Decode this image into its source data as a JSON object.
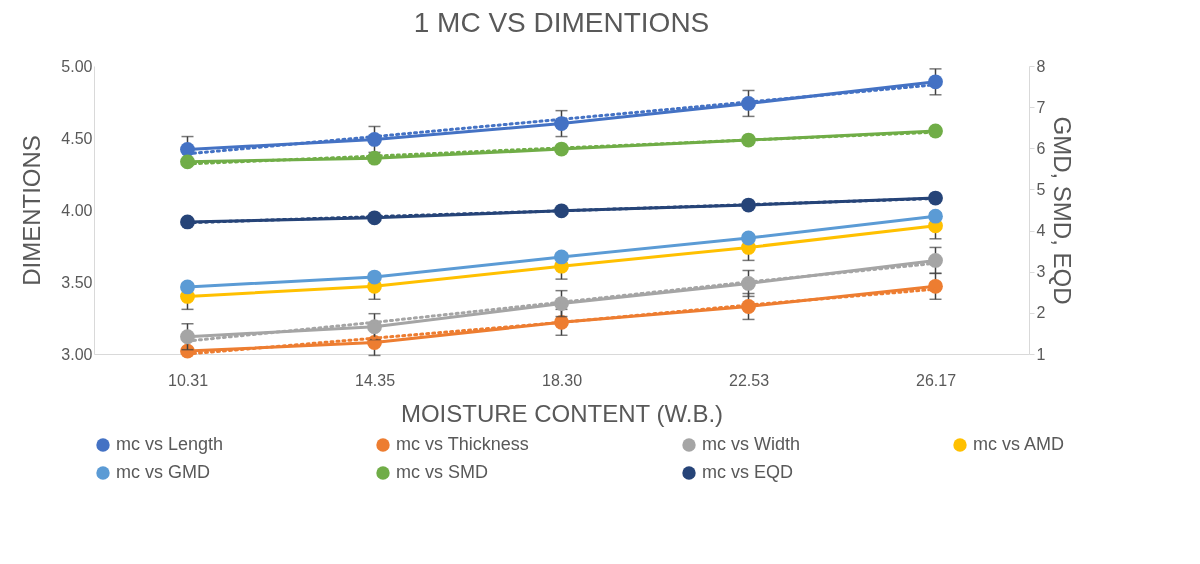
{
  "chart_data": {
    "type": "line",
    "title": "1 MC VS DIMENTIONS",
    "xlabel": "MOISTURE CONTENT (W.B.)",
    "ylabel": "DIMENTIONS",
    "y2label": "GMD, SMD, EQD",
    "categories": [
      "10.31",
      "14.35",
      "18.30",
      "22.53",
      "26.17"
    ],
    "ylim": [
      3,
      5
    ],
    "yticks": [
      {
        "value": 3,
        "label": "3.00"
      },
      {
        "value": 3.5,
        "label": "3.50"
      },
      {
        "value": 4,
        "label": "4.00"
      },
      {
        "value": 4.5,
        "label": "4.50"
      },
      {
        "value": 5,
        "label": "5.00"
      }
    ],
    "y2lim": [
      1,
      8
    ],
    "y2ticks": [
      1,
      2,
      3,
      4,
      5,
      6,
      7,
      8
    ],
    "grid": false,
    "legend": "bottom",
    "marker": "circle",
    "line_style": "solid",
    "series": [
      {
        "name": "mc vs Length",
        "color": "#4472c4",
        "values": [
          4.42,
          4.49,
          4.6,
          4.74,
          4.89
        ],
        "errors": [
          0.09,
          0.09,
          0.09,
          0.09,
          0.09
        ]
      },
      {
        "name": "mc vs Thickness",
        "color": "#ed7d31",
        "values": [
          3.02,
          3.08,
          3.22,
          3.33,
          3.47
        ],
        "errors": [
          null,
          0.09,
          0.09,
          0.09,
          0.09
        ]
      },
      {
        "name": "mc vs Width",
        "color": "#a5a5a5",
        "values": [
          3.12,
          3.19,
          3.35,
          3.49,
          3.65
        ],
        "errors": [
          0.09,
          0.09,
          0.09,
          0.09,
          0.09
        ]
      },
      {
        "name": "mc vs AMD",
        "color": "#ffc000",
        "values": [
          3.4,
          3.47,
          3.61,
          3.74,
          3.89
        ],
        "errors": [
          0.09,
          0.09,
          0.09,
          0.09,
          0.09
        ]
      },
      {
        "name": "mc vs GMD",
        "color": "#5b9bd5",
        "values": [
          2.63,
          2.87,
          3.36,
          3.82,
          4.35
        ],
        "axis": "y2"
      },
      {
        "name": "mc vs SMD",
        "color": "#70ad47",
        "values": [
          5.67,
          5.76,
          5.98,
          6.2,
          6.42
        ],
        "axis": "y2"
      },
      {
        "name": "mc vs EQD",
        "color": "#264478",
        "values": [
          4.21,
          4.31,
          4.48,
          4.62,
          4.79
        ],
        "axis": "y2"
      },
      {
        "type": "line",
        "color": "#4472c4",
        "values": [
          4.39,
          4.51,
          4.63,
          4.75,
          4.87
        ],
        "line_style": "dotted",
        "marker": "none"
      },
      {
        "type": "line",
        "color": "#ed7d31",
        "values": [
          3.0,
          3.11,
          3.22,
          3.34,
          3.45
        ],
        "line_style": "dotted",
        "marker": "none"
      },
      {
        "type": "line",
        "color": "#a5a5a5",
        "values": [
          3.09,
          3.22,
          3.36,
          3.5,
          3.63
        ],
        "line_style": "dotted",
        "marker": "none"
      },
      {
        "type": "line",
        "color": "#70ad47",
        "values": [
          5.62,
          5.81,
          6.01,
          6.2,
          6.39
        ],
        "axis": "y2",
        "line_style": "dotted",
        "marker": "none"
      },
      {
        "type": "line",
        "color": "#264478",
        "values": [
          4.19,
          4.34,
          4.48,
          4.63,
          4.78
        ],
        "axis": "y2",
        "line_style": "dotted",
        "marker": "none"
      }
    ]
  }
}
